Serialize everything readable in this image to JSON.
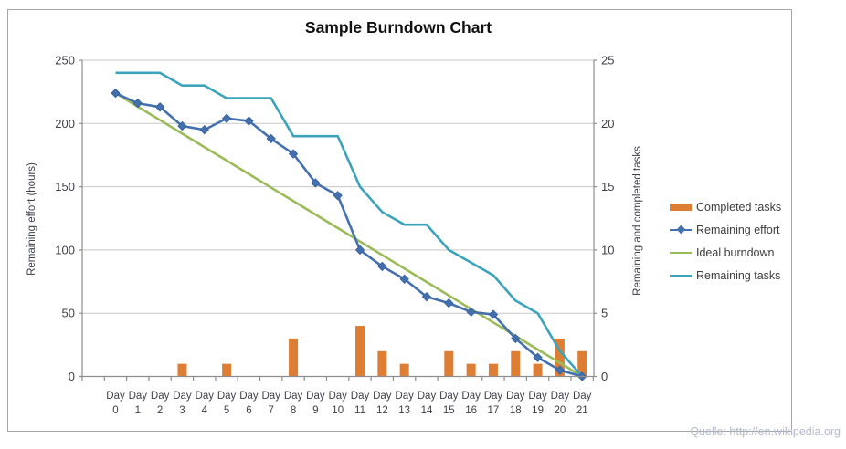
{
  "title": "Sample Burndown Chart",
  "source": "Quelle: http://en.wikipedia.org",
  "axes": {
    "left": {
      "title": "Remaining effort (hours)",
      "ticks": [
        0,
        50,
        100,
        150,
        200,
        250
      ],
      "range": [
        0,
        250
      ]
    },
    "right": {
      "title": "Remaining and completed tasks",
      "ticks": [
        0,
        5,
        10,
        15,
        20,
        25
      ],
      "range": [
        0,
        25
      ]
    },
    "x": {
      "label_word": "Day"
    }
  },
  "legend": {
    "items": [
      {
        "label": "Completed tasks",
        "swatch": "bar",
        "color": "#de7e35"
      },
      {
        "label": "Remaining effort",
        "swatch": "line-marker",
        "color": "#4471ae"
      },
      {
        "label": "Ideal burndown",
        "swatch": "line",
        "color": "#9bbb59"
      },
      {
        "label": "Remaining tasks",
        "swatch": "line",
        "color": "#3ba3bc"
      }
    ]
  },
  "chart_data": {
    "type": "combo",
    "title": "Sample Burndown Chart",
    "categories": [
      "Day 0",
      "Day 1",
      "Day 2",
      "Day 3",
      "Day 4",
      "Day 5",
      "Day 6",
      "Day 7",
      "Day 8",
      "Day 9",
      "Day 10",
      "Day 11",
      "Day 12",
      "Day 13",
      "Day 14",
      "Day 15",
      "Day 16",
      "Day 17",
      "Day 18",
      "Day 19",
      "Day 20",
      "Day 21"
    ],
    "ylabel_left": "Remaining effort (hours)",
    "ylabel_right": "Remaining and completed tasks",
    "ylim_left": [
      0,
      250
    ],
    "ylim_right": [
      0,
      25
    ],
    "grid": true,
    "legend_position": "right",
    "series": [
      {
        "name": "Completed tasks",
        "type": "bar",
        "axis": "right",
        "color": "#de7e35",
        "values": [
          0,
          0,
          0,
          1,
          0,
          1,
          0,
          0,
          3,
          0,
          0,
          4,
          2,
          1,
          0,
          2,
          1,
          1,
          2,
          1,
          3,
          2
        ]
      },
      {
        "name": "Ideal burndown",
        "type": "line",
        "axis": "left",
        "color": "#9bbb59",
        "values": [
          224,
          213.3,
          202.7,
          192,
          181.3,
          170.7,
          160,
          149.3,
          138.7,
          128,
          117.3,
          106.7,
          96,
          85.3,
          74.7,
          64,
          53.3,
          42.7,
          32,
          21.3,
          10.7,
          0
        ]
      },
      {
        "name": "Remaining tasks",
        "type": "line",
        "axis": "right",
        "color": "#3ba3bc",
        "values": [
          24,
          24,
          24,
          23,
          23,
          22,
          22,
          22,
          19,
          19,
          19,
          15,
          13,
          12,
          12,
          10,
          9,
          8,
          6,
          5,
          2,
          0
        ]
      },
      {
        "name": "Remaining effort",
        "type": "line",
        "axis": "left",
        "color": "#4471ae",
        "marker": "diamond",
        "marker_edge": "#3a62a0",
        "values": [
          224,
          216,
          213,
          198,
          195,
          204,
          202,
          188,
          176,
          153,
          143,
          100,
          87,
          77,
          63,
          58,
          51,
          49,
          30,
          15,
          5,
          0
        ]
      }
    ],
    "colors": {
      "grid": "#c8c8c8",
      "axis_line": "#8e8e8e",
      "tick_text": "#3f3f4c"
    }
  }
}
